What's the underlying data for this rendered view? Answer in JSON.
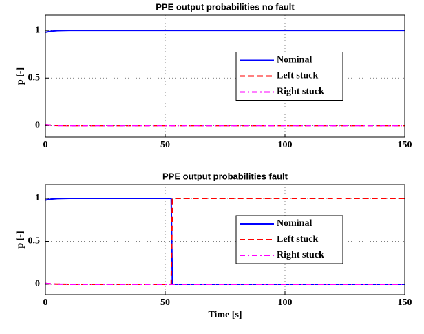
{
  "chart_data": [
    {
      "type": "line",
      "title": "PPE output probabilities no fault",
      "ylabel": "p [-]",
      "x": [
        0,
        2,
        5,
        10,
        150
      ],
      "series": [
        {
          "name": "Nominal",
          "color": "#0000ff",
          "dash": "solid",
          "values": [
            0.98,
            0.99,
            0.997,
            1,
            1
          ]
        },
        {
          "name": "Left stuck",
          "color": "#ff0000",
          "dash": "dashed",
          "values": [
            0.01,
            0.005,
            0.002,
            0,
            0
          ]
        },
        {
          "name": "Right stuck",
          "color": "#ff00ff",
          "dash": "dashdot",
          "values": [
            0.01,
            0.005,
            0.001,
            0,
            0
          ]
        }
      ],
      "xlim": [
        0,
        150
      ],
      "xticks": [
        0,
        50,
        100,
        150
      ],
      "ylim": [
        -0.12,
        1.16
      ],
      "yticks": [
        0,
        0.5,
        1
      ],
      "grid": true,
      "legend": "center right"
    },
    {
      "type": "line",
      "title": "PPE output probabilities fault",
      "ylabel": "p [-]",
      "xlabel": "Time [s]",
      "x": [
        0,
        2,
        5,
        10,
        52.5,
        53,
        150
      ],
      "series": [
        {
          "name": "Nominal",
          "color": "#0000ff",
          "dash": "solid",
          "values": [
            0.98,
            0.99,
            0.997,
            1,
            1,
            0,
            0
          ]
        },
        {
          "name": "Left stuck",
          "color": "#ff0000",
          "dash": "dashed",
          "values": [
            0.01,
            0.005,
            0.002,
            0,
            0,
            1,
            1
          ]
        },
        {
          "name": "Right stuck",
          "color": "#ff00ff",
          "dash": "dashdot",
          "values": [
            0.01,
            0.005,
            0.001,
            0,
            0,
            0,
            0
          ]
        }
      ],
      "xlim": [
        0,
        150
      ],
      "xticks": [
        0,
        50,
        100,
        150
      ],
      "ylim": [
        -0.12,
        1.16
      ],
      "yticks": [
        0,
        0.5,
        1
      ],
      "grid": true,
      "legend": "center right"
    }
  ]
}
